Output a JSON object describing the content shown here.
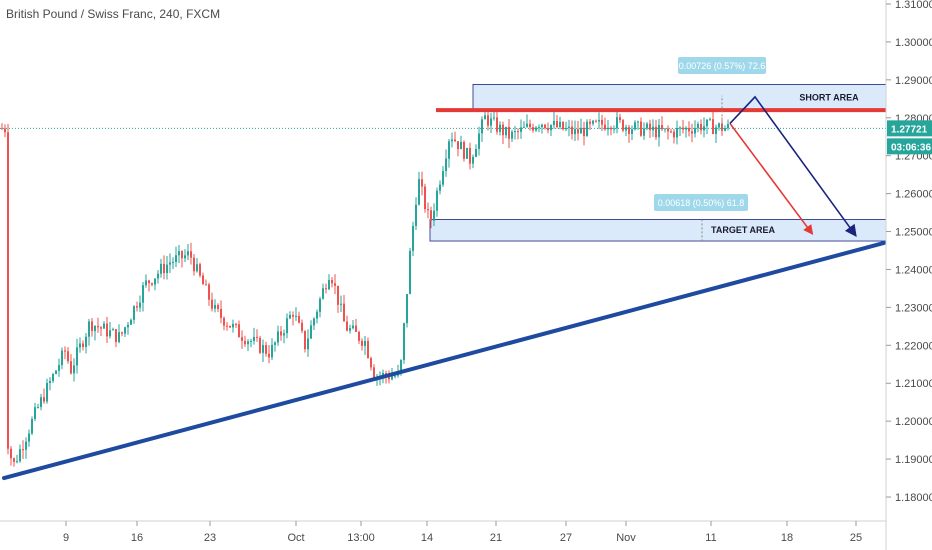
{
  "header": {
    "title": "British Pound / Swiss Franc, 240, FXCM"
  },
  "price_axis": {
    "ticks": [
      "1.31000",
      "1.30000",
      "1.29000",
      "1.28000",
      "1.27000",
      "1.26000",
      "1.25000",
      "1.24000",
      "1.23000",
      "1.22000",
      "1.21000",
      "1.20000",
      "1.19000",
      "1.18000"
    ]
  },
  "time_axis": {
    "ticks": [
      "9",
      "16",
      "23",
      "Oct",
      "13:00",
      "14",
      "21",
      "27",
      "Nov",
      "11",
      "18",
      "25"
    ]
  },
  "current_price": {
    "value": "1.27721",
    "countdown": "03:06:36",
    "color": "#26a69a"
  },
  "annotations": {
    "short_area_label": "SHORT AREA",
    "target_area_label": "TARGET AREA",
    "measure_top": "0.00726 (0.57%) 72.6",
    "measure_bottom": "0.00618 (0.50%) 61.8"
  },
  "colors": {
    "up": "#26a69a",
    "down": "#ef5350",
    "trendline": "#1e4aa0",
    "resistance": "#e53935",
    "zone_fill": "#dbeafb",
    "zone_stroke": "#1a237e",
    "arrow_red": "#e53935",
    "arrow_blue": "#1a237e",
    "measure_bg": "#9fd8ea"
  },
  "chart_data": {
    "type": "candlestick",
    "title": "British Pound / Swiss Franc, 240, FXCM",
    "ylim": [
      1.1755,
      1.3135
    ],
    "close_path": [
      [
        "Sep 3",
        1.197
      ],
      [
        "Sep 5",
        1.188
      ],
      [
        "Sep 7",
        1.203
      ],
      [
        "Sep 9",
        1.219
      ],
      [
        "Sep 10",
        1.213
      ],
      [
        "Sep 12",
        1.226
      ],
      [
        "Sep 15",
        1.222
      ],
      [
        "Sep 17",
        1.236
      ],
      [
        "Sep 19",
        1.242
      ],
      [
        "Sep 21",
        1.244
      ],
      [
        "Sep 22",
        1.24
      ],
      [
        "Sep 24",
        1.229
      ],
      [
        "Sep 26",
        1.223
      ],
      [
        "Sep 28",
        1.218
      ],
      [
        "Oct 1",
        1.229
      ],
      [
        "Oct 3",
        1.22
      ],
      [
        "Oct 5",
        1.24
      ],
      [
        "Oct 7",
        1.225
      ],
      [
        "Oct 9",
        1.221
      ],
      [
        "Oct 11",
        1.212
      ],
      [
        "Oct 13",
        1.212
      ],
      [
        "Oct 13b",
        1.244
      ],
      [
        "Oct 14",
        1.264
      ],
      [
        "Oct 15",
        1.252
      ],
      [
        "Oct 16",
        1.276
      ],
      [
        "Oct 18",
        1.269
      ],
      [
        "Oct 20",
        1.28
      ],
      [
        "Oct 22",
        1.275
      ],
      [
        "Oct 25",
        1.279
      ],
      [
        "Oct 28",
        1.276
      ],
      [
        "Oct 31",
        1.279
      ],
      [
        "Nov 3",
        1.277
      ],
      [
        "Nov 6",
        1.276
      ],
      [
        "Nov 9",
        1.278
      ],
      [
        "Nov 11",
        1.2772
      ]
    ],
    "levels": {
      "resistance_line": 1.282,
      "short_area": [
        1.282,
        1.2888
      ],
      "target_area": [
        1.2475,
        1.2532
      ],
      "current_price": 1.27721
    },
    "trendline": [
      [
        "Sep 1",
        1.185
      ],
      [
        "Nov 26",
        1.247
      ]
    ],
    "projection_arrows": [
      {
        "color": "red",
        "points": [
          [
            "Nov 11",
            1.2785
          ],
          [
            "Nov 20",
            1.2495
          ]
        ]
      },
      {
        "color": "blue",
        "points": [
          [
            "Nov 11",
            1.2785
          ],
          [
            "Nov 14",
            1.2855
          ],
          [
            "Nov 24",
            1.2492
          ]
        ]
      }
    ]
  }
}
